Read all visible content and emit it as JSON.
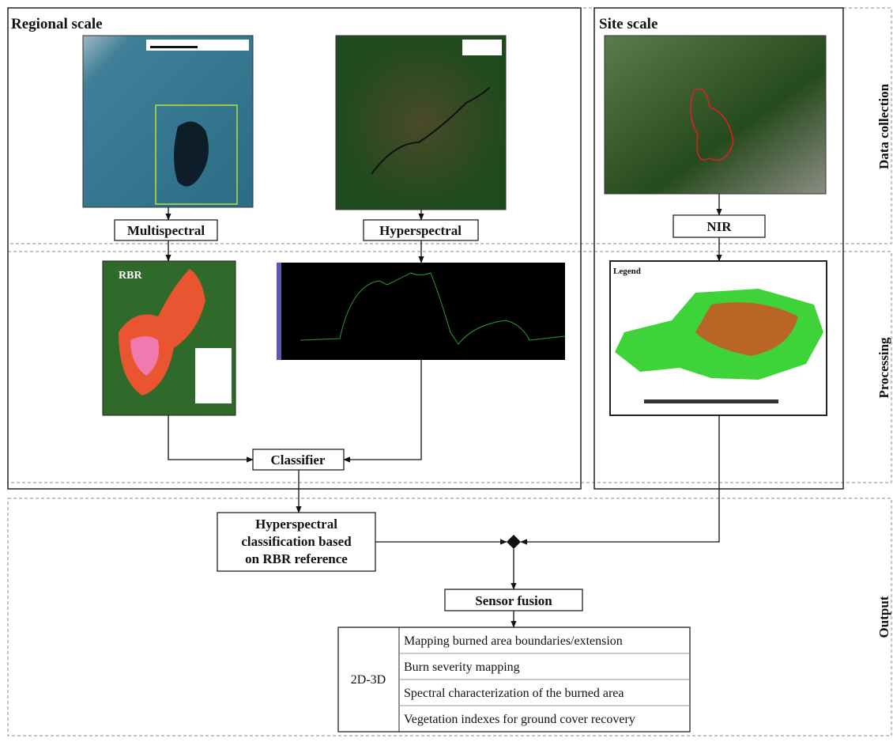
{
  "panels": {
    "regional": "Regional scale",
    "site": "Site scale"
  },
  "stages": {
    "data_collection": "Data collection",
    "processing": "Processing",
    "output": "Output"
  },
  "nodes": {
    "multispectral": "Multispectral",
    "hyperspectral": "Hyperspectral",
    "nir": "NIR",
    "classifier": "Classifier",
    "classification": [
      "Hyperspectral",
      "classification based",
      "on RBR reference"
    ],
    "sensor_fusion": "Sensor fusion"
  },
  "images": {
    "rbr": "RBR",
    "legend": "Legend"
  },
  "outputs": {
    "dimension": "2D-3D",
    "items": [
      "Mapping burned area boundaries/extension",
      "Burn severity mapping",
      "Spectral characterization of the burned area",
      "Vegetation indexes for ground cover recovery"
    ]
  }
}
